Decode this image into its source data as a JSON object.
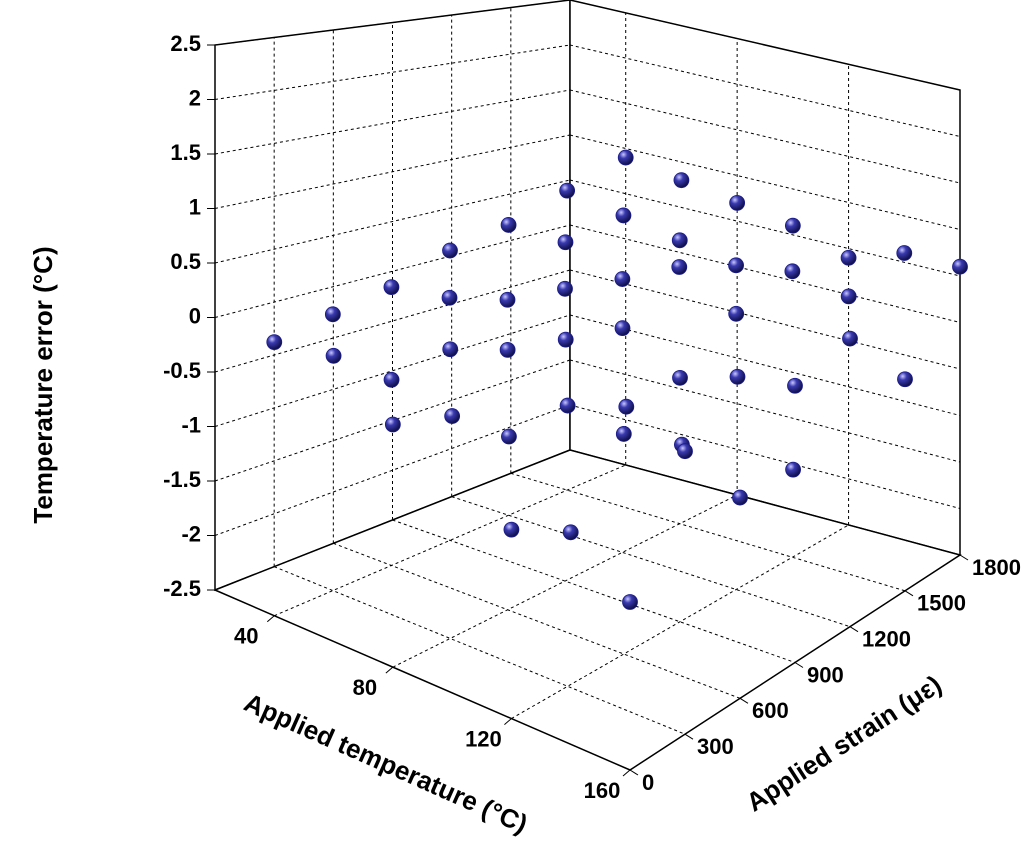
{
  "chart_data": {
    "type": "scatter3d",
    "xlabel": "Applied temperature (°C)",
    "ylabel": "Applied strain (με)",
    "zlabel": "Temperature error (°C)",
    "xlim": [
      20,
      160
    ],
    "xticks": [
      40,
      80,
      120,
      160
    ],
    "ylim": [
      0,
      1800
    ],
    "yticks": [
      0,
      300,
      600,
      900,
      1200,
      1500,
      1800
    ],
    "zlim": [
      -2.5,
      2.5
    ],
    "zticks": [
      -2.5,
      -2.0,
      -1.5,
      -1.0,
      -0.5,
      0.0,
      0.5,
      1.0,
      1.5,
      2.0,
      2.5
    ],
    "grid": true,
    "series": [
      {
        "color": "#1c1c8a",
        "x": [
          40,
          40,
          40,
          40,
          40,
          40,
          40,
          60,
          60,
          60,
          60,
          60,
          60,
          60,
          80,
          80,
          80,
          80,
          80,
          80,
          80,
          100,
          100,
          100,
          100,
          100,
          100,
          100,
          120,
          120,
          120,
          120,
          120,
          120,
          120,
          140,
          140,
          140,
          140,
          140,
          140,
          140,
          160,
          160,
          160,
          160,
          160,
          160,
          160
        ],
        "y": [
          0,
          300,
          600,
          900,
          1200,
          1500,
          1800,
          0,
          300,
          600,
          900,
          1200,
          1500,
          1800,
          0,
          300,
          600,
          900,
          1200,
          1500,
          1800,
          0,
          300,
          600,
          900,
          1200,
          1500,
          1800,
          0,
          300,
          600,
          900,
          1200,
          1500,
          1800,
          0,
          300,
          600,
          900,
          1200,
          1500,
          1800,
          0,
          300,
          600,
          900,
          1200,
          1500,
          1800
        ],
        "z": [
          0.0,
          0.1,
          0.2,
          0.4,
          0.5,
          0.7,
          0.9,
          0.1,
          -0.3,
          0.3,
          0.1,
          0.5,
          0.6,
          0.8,
          -0.3,
          0.2,
          0.0,
          0.4,
          0.3,
          0.5,
          0.7,
          0.0,
          -0.4,
          0.3,
          0.2,
          0.6,
          0.4,
          0.6,
          -0.8,
          0.1,
          -0.4,
          -0.1,
          0.3,
          0.5,
          0.4,
          -0.6,
          0.3,
          -0.3,
          0.1,
          -1.1,
          0.4,
          0.6,
          -1.0,
          0.1,
          -0.6,
          0.2,
          0.4,
          -0.3,
          0.6
        ]
      }
    ]
  }
}
